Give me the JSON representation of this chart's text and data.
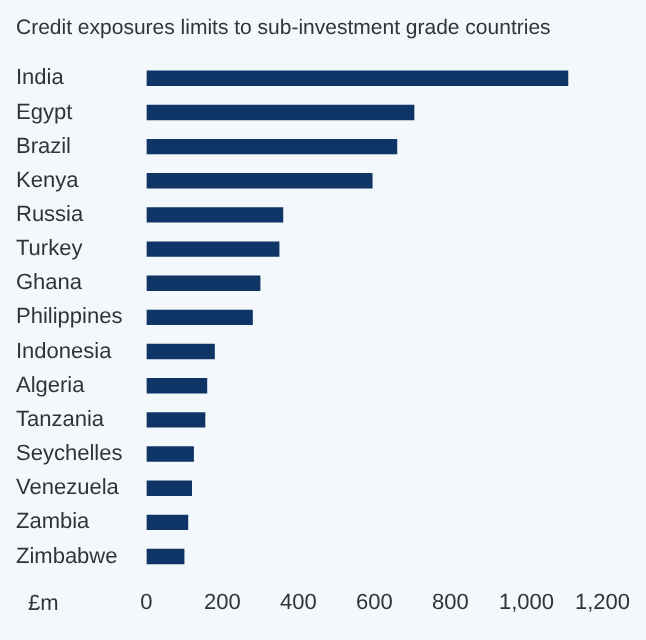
{
  "chart_data": {
    "type": "bar",
    "orientation": "horizontal",
    "title": "Credit exposures limits to sub-investment grade countries",
    "xlabel": "£m",
    "categories": [
      "India",
      "Egypt",
      "Brazil",
      "Kenya",
      "Russia",
      "Turkey",
      "Ghana",
      "Philippines",
      "Indonesia",
      "Algeria",
      "Tanzania",
      "Seychelles",
      "Venezuela",
      "Zambia",
      "Zimbabwe"
    ],
    "values": [
      1110,
      705,
      660,
      595,
      360,
      350,
      300,
      280,
      180,
      160,
      155,
      125,
      120,
      110,
      100
    ],
    "color": "#0f3466",
    "xlim": [
      0,
      1200
    ],
    "xticks": [
      0,
      200,
      400,
      600,
      800,
      {
        "value": 1000,
        "label": "1,000"
      },
      {
        "value": 1200,
        "label": "1,200"
      }
    ],
    "grid": false,
    "legend": false
  }
}
